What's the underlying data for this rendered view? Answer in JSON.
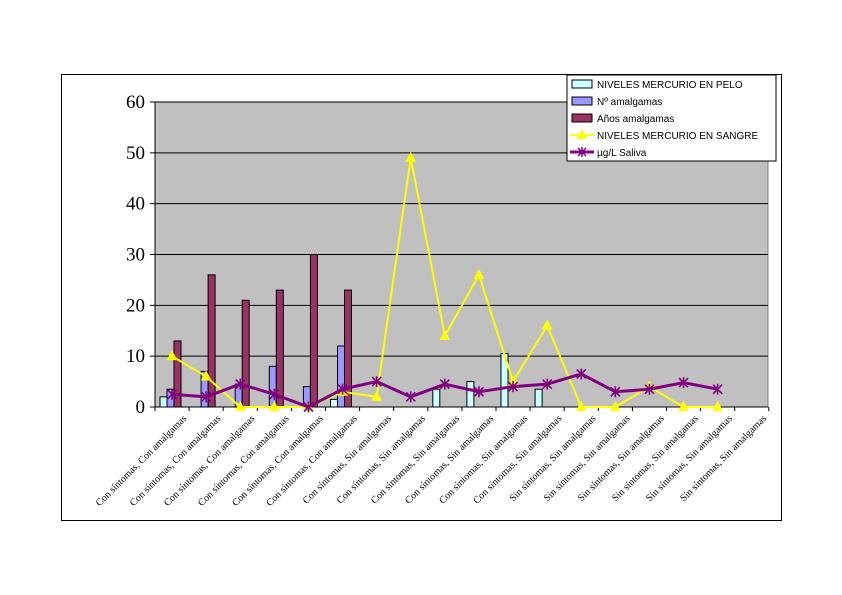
{
  "chart_data": {
    "type": "bar+line",
    "categories": [
      "Con síntomas, Con amalgamas",
      "Con síntomas, Con amalgamas",
      "Con síntomas, Con amalgamas",
      "Con síntomas, Con amalgamas",
      "Con síntomas, Con amalgamas",
      "Con síntomas, Con amalgamas",
      "Con síntomas, Sin amalgamas",
      "Con síntomas, Sin amalgamas",
      "Con síntomas, Sin amalgamas",
      "Con síntomas, Sin amalgamas",
      "Con síntomas, Sin amalgamas",
      "Con síntomas, Sin amalgamas",
      "Sin síntomas, Sin amalgamas",
      "Sin síntomas, Sin amalgamas",
      "Sin síntomas, Sin amalgamas",
      "Sin síntomas, Sin amalgamas",
      "Sin síntomas, Sin amalgamas",
      "Sin síntomas, Sin amalgamas"
    ],
    "ylim": [
      0,
      60
    ],
    "yticks": [
      "0",
      "10",
      "20",
      "30",
      "40",
      "50",
      "60"
    ],
    "grid": true,
    "plot_background": "#c0c0c0",
    "legend_position": "top-right",
    "series": [
      {
        "name": "NIVELES MERCURIO EN PELO",
        "kind": "bar",
        "color": "#ccffff",
        "values": [
          2,
          0,
          0,
          0,
          0,
          1.5,
          0,
          0,
          3.5,
          5,
          10.5,
          3.5,
          0,
          0,
          0,
          0,
          0,
          0
        ]
      },
      {
        "name": "Nº amalgamas",
        "kind": "bar",
        "color": "#9999ff",
        "values": [
          3.5,
          7,
          4.5,
          8,
          4,
          12,
          0,
          0,
          0,
          0,
          0,
          0,
          0,
          0,
          0,
          0,
          0,
          0
        ]
      },
      {
        "name": "Años amalgamas",
        "kind": "bar",
        "color": "#993366",
        "values": [
          13,
          26,
          21,
          23,
          30,
          23,
          0,
          0,
          0,
          0,
          0,
          0,
          0,
          0,
          0,
          0,
          0,
          0
        ]
      },
      {
        "name": "NIVELES MERCURIO EN SANGRE",
        "kind": "line",
        "marker": "triangle",
        "color": "#ffff00",
        "values": [
          10,
          6,
          0,
          0,
          0,
          3,
          2,
          49,
          14,
          26,
          5,
          16,
          0,
          0,
          4,
          0,
          0,
          null
        ]
      },
      {
        "name": "µg/L Saliva",
        "kind": "line",
        "marker": "star",
        "color": "#800080",
        "values": [
          2.5,
          2,
          4.5,
          2.5,
          0,
          3.5,
          5,
          2,
          4.5,
          3,
          4,
          4.5,
          6.5,
          3,
          3.5,
          4.8,
          3.5,
          null
        ]
      }
    ]
  }
}
